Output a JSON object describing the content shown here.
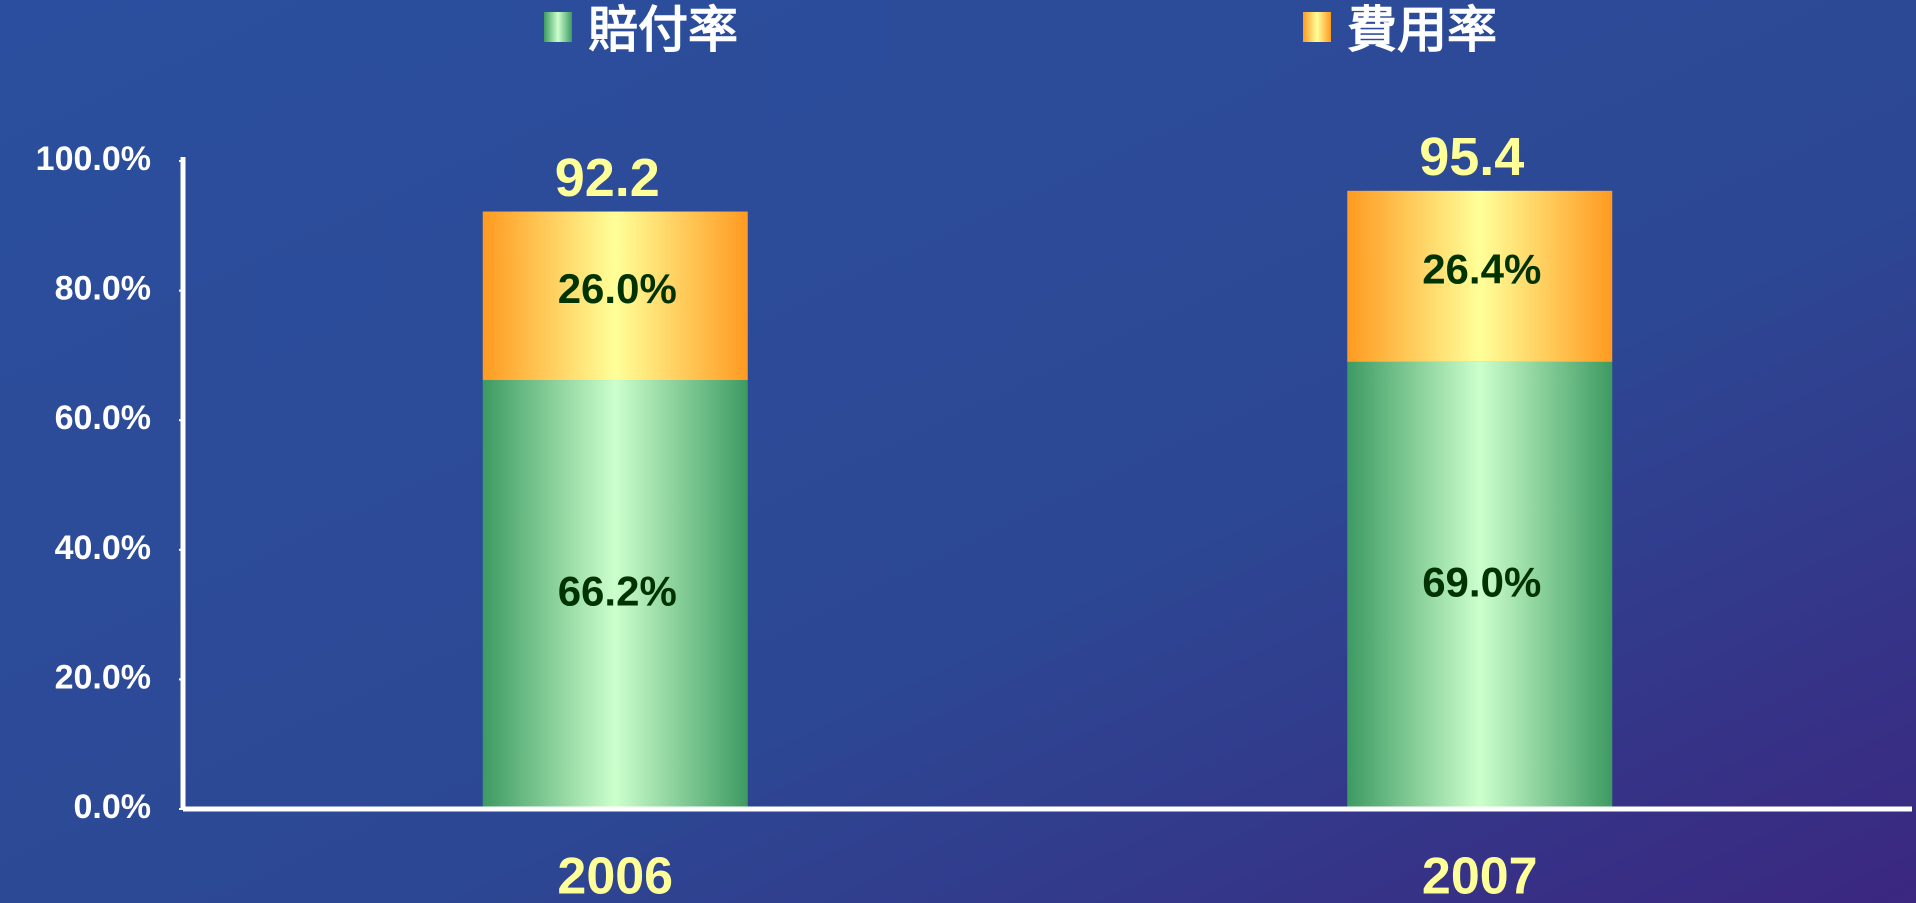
{
  "chart_data": {
    "type": "stacked_bar",
    "categories": [
      "2006",
      "2007"
    ],
    "series": [
      {
        "name": "賠付率",
        "color": "#3d9a62",
        "values": [
          66.2,
          69.0
        ],
        "value_labels": [
          "66.2%",
          "69.0%"
        ]
      },
      {
        "name": "費用率",
        "color": "#ff9a20",
        "values": [
          26.0,
          26.4
        ],
        "value_labels": [
          "26.0%",
          "26.4%"
        ]
      }
    ],
    "totals": [
      92.2,
      95.4
    ],
    "ylim": [
      0,
      100
    ],
    "yticks": [
      {
        "value": 0,
        "label": "0.0%"
      },
      {
        "value": 20,
        "label": "20.0%"
      },
      {
        "value": 40,
        "label": "40.0%"
      },
      {
        "value": 60,
        "label": "60.0%"
      },
      {
        "value": 80,
        "label": "80.0%"
      },
      {
        "value": 100,
        "label": "100.0%"
      }
    ],
    "legend": "top"
  }
}
